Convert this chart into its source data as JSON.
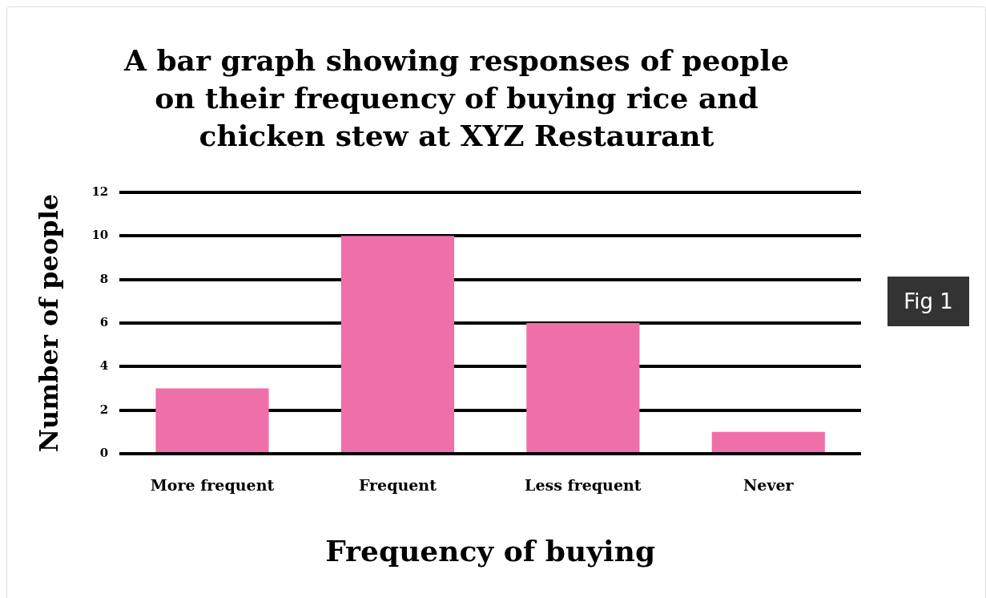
{
  "chart_data": {
    "type": "bar",
    "title": "A bar graph showing responses of people on their frequency of buying rice and chicken stew at XYZ Restaurant",
    "xlabel": "Frequency of buying",
    "ylabel": "Number of people",
    "categories": [
      "More frequent",
      "Frequent",
      "Less frequent",
      "Never"
    ],
    "values": [
      3,
      10,
      6,
      1
    ],
    "color": "#ef6fa8",
    "ylim": [
      0,
      12
    ],
    "yticks": [
      0,
      2,
      4,
      6,
      8,
      10,
      12
    ],
    "grid": "y",
    "legend": false,
    "annotations": [
      "Fig 1"
    ]
  }
}
